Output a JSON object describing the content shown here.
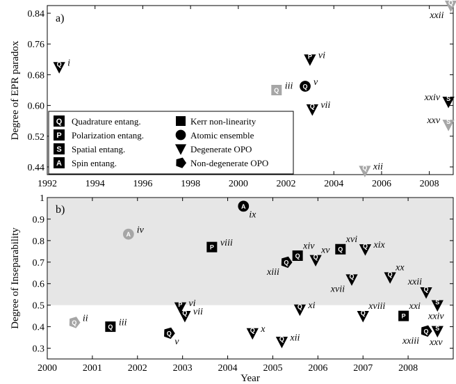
{
  "colors": {
    "black": "#000000",
    "grey": "#a6a6a6",
    "band": "#e6e6e6"
  },
  "chart_data": [
    {
      "panel": "a)",
      "type": "scatter",
      "ylabel": "Degree of EPR paradox",
      "xlim": [
        1992,
        2009
      ],
      "ylim": [
        0.42,
        0.86
      ],
      "xticks": [
        1992,
        1994,
        1996,
        1998,
        2000,
        2002,
        2004,
        2006,
        2008
      ],
      "yticks": [
        "0.44",
        "0.52",
        "0.60",
        "0.68",
        "0.76",
        "0.84"
      ],
      "points": [
        {
          "label": "i",
          "x": 1992.5,
          "y": 0.7,
          "shape": "triangle",
          "letter": "Q",
          "color": "black",
          "lpos": "right"
        },
        {
          "label": "iii",
          "x": 2001.6,
          "y": 0.64,
          "shape": "square",
          "letter": "Q",
          "color": "grey",
          "lpos": "right"
        },
        {
          "label": "v",
          "x": 2002.8,
          "y": 0.65,
          "shape": "circle",
          "letter": "Q",
          "color": "black",
          "lpos": "right"
        },
        {
          "label": "vi",
          "x": 2003.0,
          "y": 0.72,
          "shape": "triangle",
          "letter": "P",
          "color": "black",
          "lpos": "right"
        },
        {
          "label": "vii",
          "x": 2003.1,
          "y": 0.59,
          "shape": "triangle",
          "letter": "Q",
          "color": "black",
          "lpos": "right"
        },
        {
          "label": "xii",
          "x": 2005.3,
          "y": 0.43,
          "shape": "triangle",
          "letter": "Q",
          "color": "grey",
          "lpos": "right"
        },
        {
          "label": "xxii",
          "x": 2008.9,
          "y": 0.86,
          "shape": "triangle",
          "letter": "Q",
          "color": "grey",
          "lpos": "belowleft"
        },
        {
          "label": "xxiv",
          "x": 2008.8,
          "y": 0.61,
          "shape": "triangle",
          "letter": "S",
          "color": "black",
          "lpos": "left"
        },
        {
          "label": "xxv",
          "x": 2008.8,
          "y": 0.55,
          "shape": "triangle",
          "letter": "S",
          "color": "grey",
          "lpos": "left"
        }
      ]
    },
    {
      "panel": "b)",
      "type": "scatter",
      "ylabel": "Degree of Inseparability",
      "xlabel": "Year",
      "xlim": [
        2000,
        2009
      ],
      "ylim": [
        0.25,
        1.0
      ],
      "band": [
        0.5,
        1.0
      ],
      "xticks": [
        2000,
        2001,
        2002,
        2003,
        2004,
        2005,
        2006,
        2007,
        2008
      ],
      "yticks": [
        "0.3",
        "0.4",
        "0.5",
        "0.6",
        "0.7",
        "0.8",
        "0.9",
        "1"
      ],
      "points": [
        {
          "label": "ii",
          "x": 2000.6,
          "y": 0.42,
          "shape": "pentagon",
          "letter": "Q",
          "color": "grey",
          "lpos": "right"
        },
        {
          "label": "iii",
          "x": 2001.4,
          "y": 0.4,
          "shape": "square",
          "letter": "Q",
          "color": "black",
          "lpos": "right"
        },
        {
          "label": "iv",
          "x": 2001.8,
          "y": 0.83,
          "shape": "circle",
          "letter": "A",
          "color": "grey",
          "lpos": "right"
        },
        {
          "label": "v",
          "x": 2002.7,
          "y": 0.37,
          "shape": "pentagon",
          "letter": "Q",
          "color": "black",
          "lpos": "belowright"
        },
        {
          "label": "vi",
          "x": 2002.95,
          "y": 0.49,
          "shape": "triangle",
          "letter": "P",
          "color": "black",
          "lpos": "right"
        },
        {
          "label": "vii",
          "x": 2003.05,
          "y": 0.45,
          "shape": "triangle",
          "letter": "Q",
          "color": "black",
          "lpos": "right"
        },
        {
          "label": "viii",
          "x": 2003.65,
          "y": 0.77,
          "shape": "square",
          "letter": "P",
          "color": "black",
          "lpos": "right"
        },
        {
          "label": "ix",
          "x": 2004.35,
          "y": 0.96,
          "shape": "circle",
          "letter": "A",
          "color": "black",
          "lpos": "belowright"
        },
        {
          "label": "x",
          "x": 2004.55,
          "y": 0.37,
          "shape": "triangle",
          "letter": "Q",
          "color": "black",
          "lpos": "right"
        },
        {
          "label": "xi",
          "x": 2005.6,
          "y": 0.48,
          "shape": "triangle",
          "letter": "Q",
          "color": "black",
          "lpos": "right"
        },
        {
          "label": "xii",
          "x": 2005.2,
          "y": 0.33,
          "shape": "triangle",
          "letter": "Q",
          "color": "black",
          "lpos": "right"
        },
        {
          "label": "xiii",
          "x": 2005.3,
          "y": 0.7,
          "shape": "pentagon",
          "letter": "Q",
          "color": "black",
          "lpos": "belowleft"
        },
        {
          "label": "xiv",
          "x": 2005.55,
          "y": 0.73,
          "shape": "square",
          "letter": "Q",
          "color": "black",
          "lpos": "aboveright"
        },
        {
          "label": "xv",
          "x": 2005.95,
          "y": 0.71,
          "shape": "triangle",
          "letter": "Q",
          "color": "black",
          "lpos": "aboveright"
        },
        {
          "label": "xvi",
          "x": 2006.5,
          "y": 0.76,
          "shape": "square",
          "letter": "Q",
          "color": "black",
          "lpos": "aboveright"
        },
        {
          "label": "xvii",
          "x": 2006.75,
          "y": 0.62,
          "shape": "triangle",
          "letter": "Q",
          "color": "black",
          "lpos": "belowleft"
        },
        {
          "label": "xviii",
          "x": 2007.0,
          "y": 0.45,
          "shape": "triangle",
          "letter": "Q",
          "color": "black",
          "lpos": "aboveright"
        },
        {
          "label": "xix",
          "x": 2007.05,
          "y": 0.76,
          "shape": "triangle",
          "letter": "Q",
          "color": "black",
          "lpos": "right"
        },
        {
          "label": "xx",
          "x": 2007.6,
          "y": 0.63,
          "shape": "triangle",
          "letter": "Q",
          "color": "black",
          "lpos": "aboveright"
        },
        {
          "label": "xxi",
          "x": 2007.9,
          "y": 0.45,
          "shape": "square",
          "letter": "P",
          "color": "black",
          "lpos": "aboveright"
        },
        {
          "label": "xxii",
          "x": 2008.4,
          "y": 0.56,
          "shape": "triangle",
          "letter": "Q",
          "color": "black",
          "lpos": "aboveleft"
        },
        {
          "label": "xxiii",
          "x": 2008.4,
          "y": 0.38,
          "shape": "pentagon",
          "letter": "Q",
          "color": "black",
          "lpos": "belowleft"
        },
        {
          "label": "xxiv",
          "x": 2008.65,
          "y": 0.5,
          "shape": "triangle",
          "letter": "S",
          "color": "black",
          "lpos": "below"
        },
        {
          "label": "xxv",
          "x": 2008.65,
          "y": 0.38,
          "shape": "triangle",
          "letter": "S",
          "color": "black",
          "lpos": "below"
        }
      ]
    }
  ],
  "legend": {
    "letters": [
      {
        "key": "Q",
        "text": "Quadrature entang."
      },
      {
        "key": "P",
        "text": "Polarization entang."
      },
      {
        "key": "S",
        "text": "Spatial entang."
      },
      {
        "key": "A",
        "text": "Spin entang."
      }
    ],
    "shapes": [
      {
        "shape": "square",
        "text": "Kerr non-linearity"
      },
      {
        "shape": "circle",
        "text": "Atomic ensemble"
      },
      {
        "shape": "triangle",
        "text": "Degenerate OPO"
      },
      {
        "shape": "pentagon",
        "text": "Non-degenerate OPO"
      }
    ]
  }
}
